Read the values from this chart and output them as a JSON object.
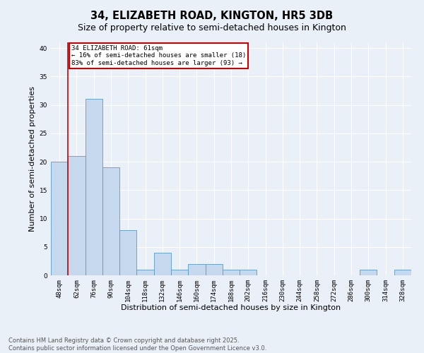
{
  "title": "34, ELIZABETH ROAD, KINGTON, HR5 3DB",
  "subtitle": "Size of property relative to semi-detached houses in Kington",
  "xlabel": "Distribution of semi-detached houses by size in Kington",
  "ylabel": "Number of semi-detached properties",
  "bar_labels": [
    "48sqm",
    "62sqm",
    "76sqm",
    "90sqm",
    "104sqm",
    "118sqm",
    "132sqm",
    "146sqm",
    "160sqm",
    "174sqm",
    "188sqm",
    "202sqm",
    "216sqm",
    "230sqm",
    "244sqm",
    "258sqm",
    "272sqm",
    "286sqm",
    "300sqm",
    "314sqm",
    "328sqm"
  ],
  "bar_values": [
    20,
    21,
    31,
    19,
    8,
    1,
    4,
    1,
    2,
    2,
    1,
    1,
    0,
    0,
    0,
    0,
    0,
    0,
    1,
    0,
    1
  ],
  "bar_color": "#c5d8ed",
  "bar_edge_color": "#5b9bc8",
  "subject_line_label": "34 ELIZABETH ROAD: 61sqm",
  "annotation_line1": "← 16% of semi-detached houses are smaller (18)",
  "annotation_line2": "83% of semi-detached houses are larger (93) →",
  "annotation_box_color": "#ffffff",
  "annotation_box_edge": "#cc0000",
  "vline_color": "#cc0000",
  "ylim": [
    0,
    41
  ],
  "yticks": [
    0,
    5,
    10,
    15,
    20,
    25,
    30,
    35,
    40
  ],
  "footnote": "Contains HM Land Registry data © Crown copyright and database right 2025.\nContains public sector information licensed under the Open Government Licence v3.0.",
  "background_color": "#eaf0f8",
  "plot_background": "#eaf0f8",
  "title_fontsize": 10.5,
  "subtitle_fontsize": 9,
  "tick_fontsize": 6.5,
  "axis_label_fontsize": 8,
  "footnote_fontsize": 6,
  "annotation_fontsize": 6.5
}
